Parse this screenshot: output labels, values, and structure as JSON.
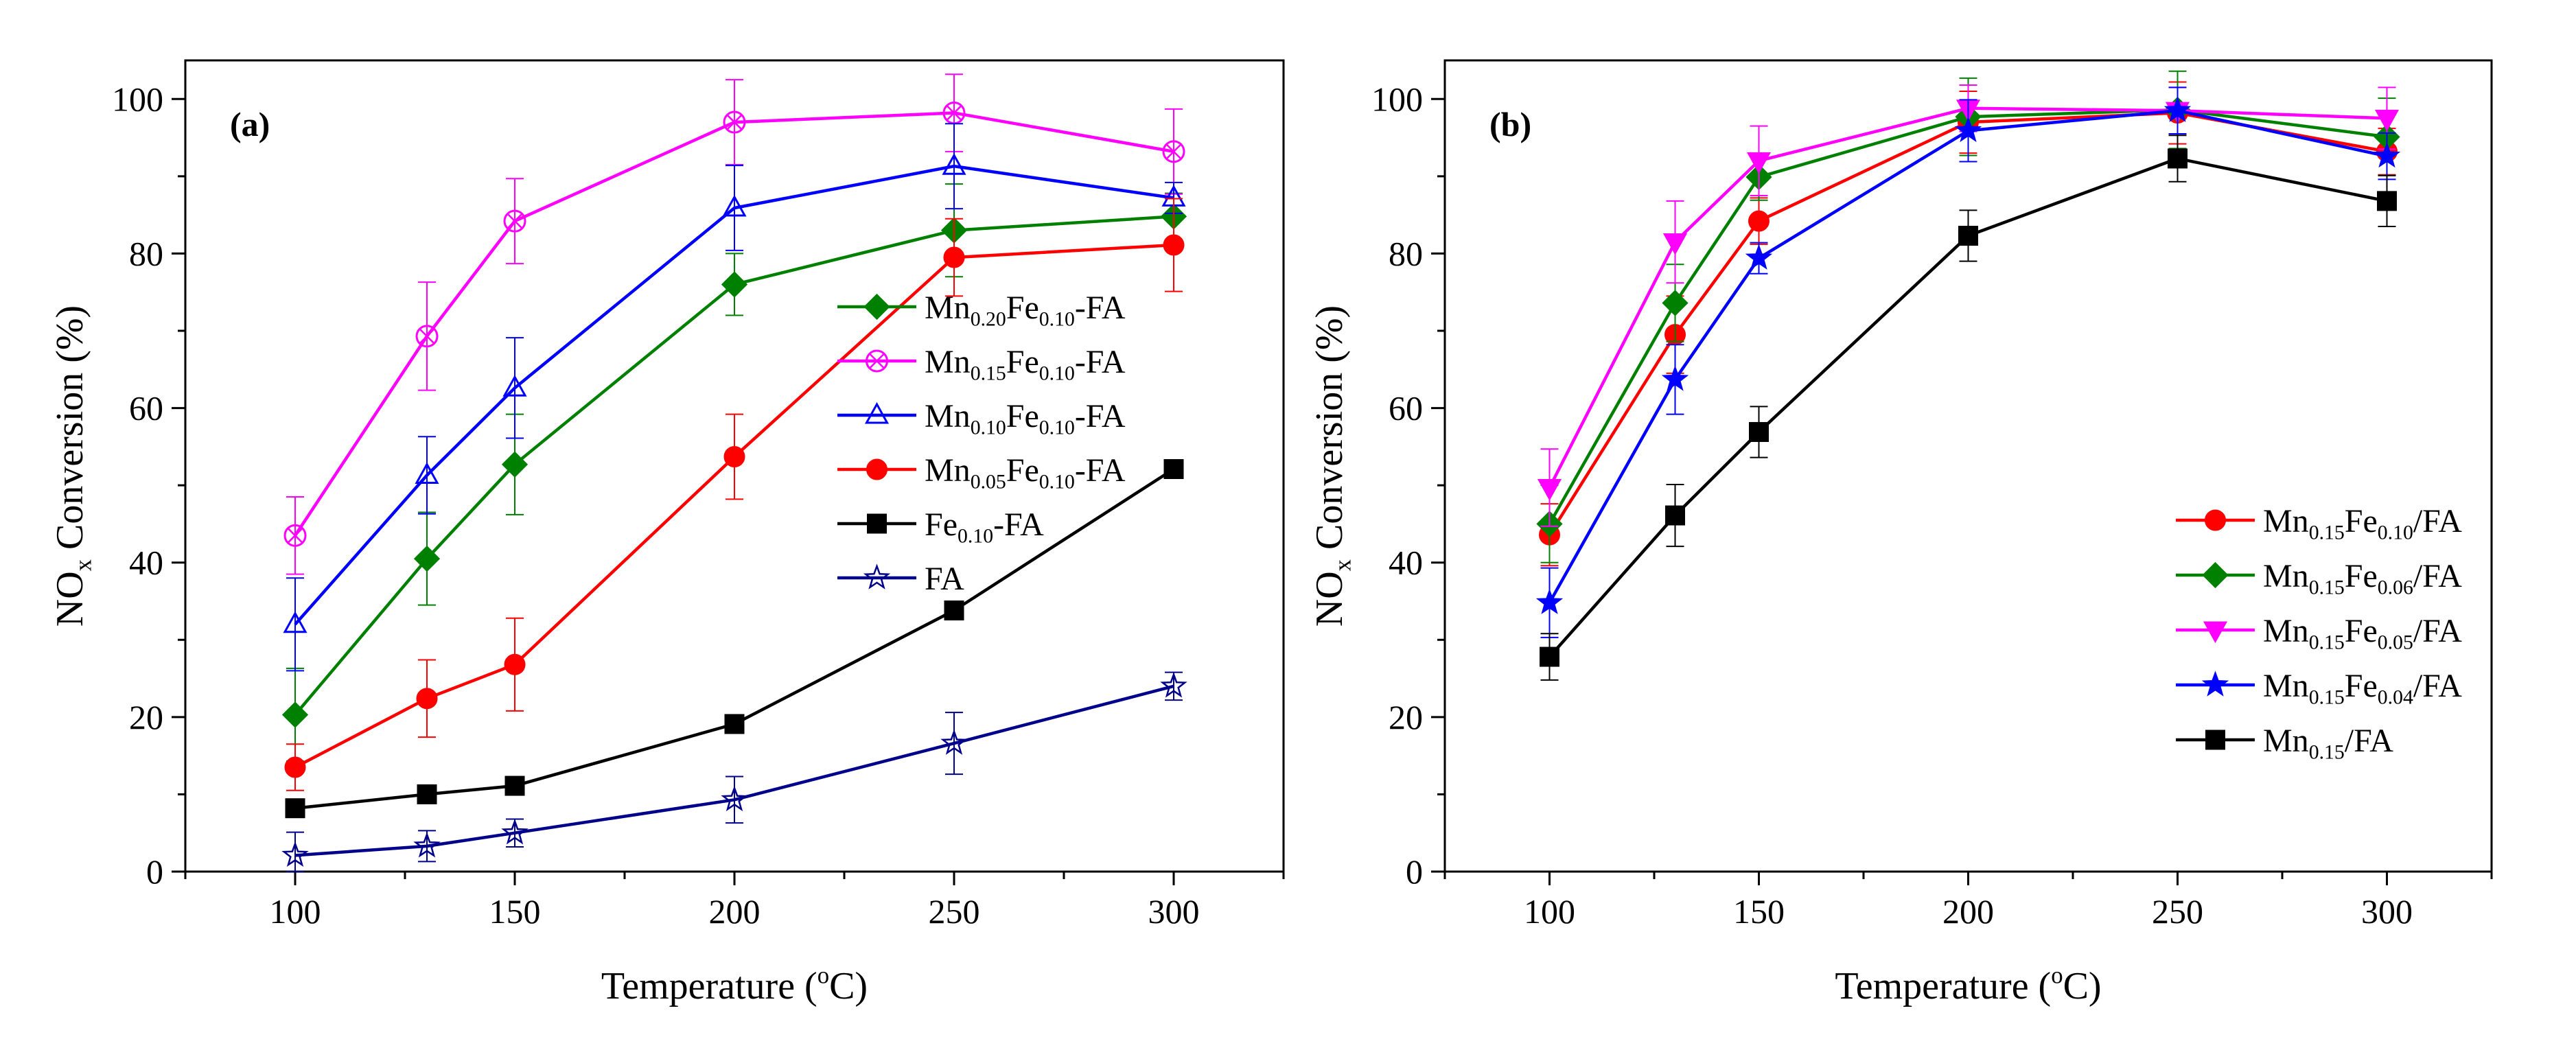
{
  "figure": {
    "background": "#ffffff"
  },
  "chart_data": [
    {
      "type": "line",
      "panel_label": "(a)",
      "xlabel": {
        "main": "Temperature (",
        "sup": "o",
        "tail": "C)"
      },
      "ylabel": {
        "main": "NO",
        "sub": "x",
        "tail": " Conversion (%)"
      },
      "xlim": [
        75,
        325
      ],
      "ylim": [
        0,
        105
      ],
      "xticks": [
        100,
        150,
        200,
        250,
        300
      ],
      "yticks": [
        0,
        20,
        40,
        60,
        80,
        100
      ],
      "legend_position": "center-right",
      "x": [
        100,
        130,
        150,
        200,
        250,
        300
      ],
      "series": [
        {
          "name": "Mn0.20Fe0.10-FA",
          "label_parts": [
            [
              "Mn",
              ""
            ],
            [
              "0.20",
              "sub"
            ],
            [
              "Fe",
              ""
            ],
            [
              "0.10",
              "sub"
            ],
            [
              "-FA",
              ""
            ]
          ],
          "color": "#008000",
          "marker": "diamond",
          "fill": true,
          "values": [
            20.3,
            40.5,
            52.7,
            76.0,
            83.0,
            84.8
          ],
          "errors": [
            6,
            6,
            6.5,
            4,
            6,
            3
          ]
        },
        {
          "name": "Mn0.15Fe0.10-FA",
          "label_parts": [
            [
              "Mn",
              ""
            ],
            [
              "0.15",
              "sub"
            ],
            [
              "Fe",
              ""
            ],
            [
              "0.10",
              "sub"
            ],
            [
              "-FA",
              ""
            ]
          ],
          "color": "#ff00ff",
          "marker": "circle-x",
          "fill": false,
          "values": [
            43.5,
            69.3,
            84.2,
            97.0,
            98.2,
            93.2
          ],
          "errors": [
            5,
            7,
            5.5,
            5.5,
            5,
            5.5
          ]
        },
        {
          "name": "Mn0.10Fe0.10-FA",
          "label_parts": [
            [
              "Mn",
              ""
            ],
            [
              "0.10",
              "sub"
            ],
            [
              "Fe",
              ""
            ],
            [
              "0.10",
              "sub"
            ],
            [
              "-FA",
              ""
            ]
          ],
          "color": "#0000ff",
          "marker": "triangle",
          "fill": false,
          "values": [
            32.0,
            51.3,
            62.6,
            85.9,
            91.3,
            87.2
          ],
          "errors": [
            6,
            5,
            6.5,
            5.5,
            5.5,
            2
          ]
        },
        {
          "name": "Mn0.05Fe0.10-FA",
          "label_parts": [
            [
              "Mn",
              ""
            ],
            [
              "0.05",
              "sub"
            ],
            [
              "Fe",
              ""
            ],
            [
              "0.10",
              "sub"
            ],
            [
              "-FA",
              ""
            ]
          ],
          "color": "#ff0000",
          "marker": "circle",
          "fill": true,
          "values": [
            13.5,
            22.4,
            26.8,
            53.7,
            79.5,
            81.1
          ],
          "errors": [
            3,
            5,
            6,
            5.5,
            5,
            6
          ]
        },
        {
          "name": "Fe0.10-FA",
          "label_parts": [
            [
              "Fe",
              ""
            ],
            [
              "0.10",
              "sub"
            ],
            [
              "-FA",
              ""
            ]
          ],
          "color": "#000000",
          "marker": "square",
          "fill": true,
          "values": [
            8.2,
            10.0,
            11.1,
            19.1,
            33.8,
            52.1
          ],
          "errors": [
            0,
            0,
            0,
            0,
            0,
            0
          ]
        },
        {
          "name": "FA",
          "label_parts": [
            [
              "FA",
              ""
            ]
          ],
          "color": "#00008b",
          "marker": "star",
          "fill": false,
          "values": [
            2.1,
            3.3,
            5.0,
            9.3,
            16.6,
            24.0
          ],
          "errors": [
            3,
            2,
            1.8,
            3,
            4,
            1.8
          ]
        }
      ]
    },
    {
      "type": "line",
      "panel_label": "(b)",
      "xlabel": {
        "main": "Temperature (",
        "sup": "o",
        "tail": "C)"
      },
      "ylabel": {
        "main": "NO",
        "sub": "x",
        "tail": " Conversion (%)"
      },
      "xlim": [
        75,
        325
      ],
      "ylim": [
        0,
        105
      ],
      "xticks": [
        100,
        150,
        200,
        250,
        300
      ],
      "yticks": [
        0,
        20,
        40,
        60,
        80,
        100
      ],
      "legend_position": "bottom-right",
      "x": [
        100,
        130,
        150,
        200,
        250,
        300
      ],
      "series": [
        {
          "name": "Mn0.15Fe0.10/FA",
          "label_parts": [
            [
              "Mn",
              ""
            ],
            [
              "0.15",
              "sub"
            ],
            [
              "Fe",
              ""
            ],
            [
              "0.10",
              "sub"
            ],
            [
              "/FA",
              ""
            ]
          ],
          "color": "#ff0000",
          "marker": "circle",
          "fill": true,
          "values": [
            43.6,
            69.5,
            84.2,
            97.0,
            98.2,
            93.2
          ],
          "errors": [
            4,
            5,
            3,
            4,
            4,
            3
          ]
        },
        {
          "name": "Mn0.15Fe0.06/FA",
          "label_parts": [
            [
              "Mn",
              ""
            ],
            [
              "0.15",
              "sub"
            ],
            [
              "Fe",
              ""
            ],
            [
              "0.06",
              "sub"
            ],
            [
              "/FA",
              ""
            ]
          ],
          "color": "#008000",
          "marker": "diamond",
          "fill": true,
          "values": [
            45.0,
            73.6,
            89.9,
            97.7,
            98.6,
            95.1
          ],
          "errors": [
            5,
            5,
            3,
            5,
            5,
            5
          ]
        },
        {
          "name": "Mn0.15Fe0.05/FA",
          "label_parts": [
            [
              "Mn",
              ""
            ],
            [
              "0.15",
              "sub"
            ],
            [
              "Fe",
              ""
            ],
            [
              "0.05",
              "sub"
            ],
            [
              "/FA",
              ""
            ]
          ],
          "color": "#ff00ff",
          "marker": "triangle-down",
          "fill": true,
          "values": [
            49.7,
            81.5,
            92.0,
            98.8,
            98.5,
            97.5
          ],
          "errors": [
            5,
            5.3,
            4.5,
            3,
            3,
            4
          ]
        },
        {
          "name": "Mn0.15Fe0.04/FA",
          "label_parts": [
            [
              "Mn",
              ""
            ],
            [
              "0.15",
              "sub"
            ],
            [
              "Fe",
              ""
            ],
            [
              "0.04",
              "sub"
            ],
            [
              "/FA",
              ""
            ]
          ],
          "color": "#0000ff",
          "marker": "star",
          "fill": true,
          "values": [
            34.8,
            63.7,
            79.4,
            95.9,
            98.5,
            92.6
          ],
          "errors": [
            4.5,
            4.5,
            2,
            4,
            3,
            3
          ]
        },
        {
          "name": "Mn0.15/FA",
          "label_parts": [
            [
              "Mn",
              ""
            ],
            [
              "0.15",
              "sub"
            ],
            [
              "/FA",
              ""
            ]
          ],
          "color": "#000000",
          "marker": "square",
          "fill": true,
          "values": [
            27.8,
            46.1,
            56.9,
            82.3,
            92.3,
            86.8
          ],
          "errors": [
            3,
            4,
            3.3,
            3.3,
            3,
            3.3
          ]
        }
      ]
    }
  ]
}
